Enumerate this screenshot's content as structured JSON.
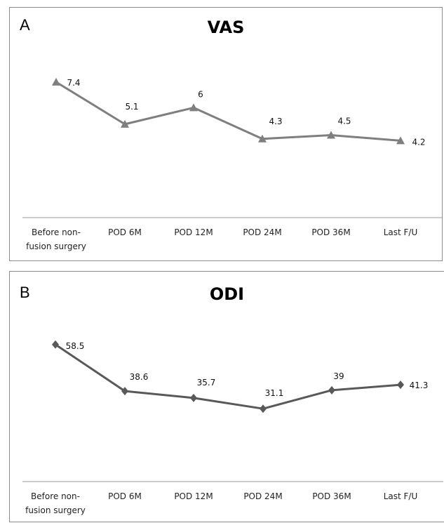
{
  "chart_data": [
    {
      "type": "line",
      "panel": "A",
      "title": "VAS",
      "categories": [
        [
          "Before non-",
          "fusion surgery"
        ],
        [
          "POD 6M"
        ],
        [
          "POD 12M"
        ],
        [
          "POD 24M"
        ],
        [
          "POD 36M"
        ],
        [
          "Last F/U"
        ]
      ],
      "series": [
        {
          "values": [
            7.4,
            5.1,
            6,
            4.3,
            4.5,
            4.2
          ]
        }
      ],
      "data_labels": [
        "7.4",
        "5.1",
        "6",
        "4.3",
        "4.5",
        "4.2"
      ],
      "marker": "triangle",
      "line_color": "#7f7f7f",
      "ylim": [
        0,
        10
      ],
      "grid": false,
      "xlabel": "",
      "ylabel": ""
    },
    {
      "type": "line",
      "panel": "B",
      "title": "ODI",
      "categories": [
        [
          "Before non-",
          "fusion surgery"
        ],
        [
          "POD 6M"
        ],
        [
          "POD 12M"
        ],
        [
          "POD 24M"
        ],
        [
          "POD 36M"
        ],
        [
          "Last F/U"
        ]
      ],
      "series": [
        {
          "values": [
            58.5,
            38.6,
            35.7,
            31.1,
            39,
            41.3
          ]
        }
      ],
      "data_labels": [
        "58.5",
        "38.6",
        "35.7",
        "31.1",
        "39",
        "41.3"
      ],
      "marker": "diamond",
      "line_color": "#595959",
      "ylim": [
        0,
        80
      ],
      "grid": false,
      "xlabel": "",
      "ylabel": ""
    }
  ]
}
